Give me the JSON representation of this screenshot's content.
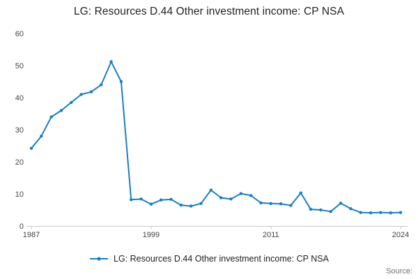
{
  "title": "LG: Resources D.44 Other investment income: CP NSA",
  "legend": {
    "label": "LG: Resources D.44 Other investment income: CP NSA"
  },
  "source_label": "Source:",
  "colors": {
    "line": "#1b7ec2",
    "title_text": "#222222",
    "tick_text": "#444444",
    "axis_line": "#c9c9c9",
    "source_text": "#707070",
    "background": "#ffffff"
  },
  "chart_data": {
    "type": "line",
    "title": "LG: Resources D.44 Other investment income: CP NSA",
    "xlabel": "",
    "ylabel": "",
    "xlim": [
      1987,
      2024
    ],
    "ylim": [
      0,
      60
    ],
    "xticks": [
      1987,
      1999,
      2011,
      2024
    ],
    "yticks": [
      0,
      10,
      20,
      30,
      40,
      50,
      60
    ],
    "grid": false,
    "legend_position": "bottom",
    "marker": "circle",
    "x": [
      1987,
      1988,
      1989,
      1990,
      1991,
      1992,
      1993,
      1994,
      1995,
      1996,
      1997,
      1998,
      1999,
      2000,
      2001,
      2002,
      2003,
      2004,
      2005,
      2006,
      2007,
      2008,
      2009,
      2010,
      2011,
      2012,
      2013,
      2014,
      2015,
      2016,
      2017,
      2018,
      2019,
      2020,
      2021,
      2022,
      2023,
      2024
    ],
    "series": [
      {
        "name": "LG: Resources D.44 Other investment income: CP NSA",
        "values": [
          24.2,
          28.0,
          34.0,
          36.0,
          38.5,
          41.0,
          41.8,
          44.0,
          51.2,
          45.0,
          8.2,
          8.4,
          6.8,
          8.1,
          8.3,
          6.5,
          6.2,
          7.0,
          11.2,
          8.8,
          8.4,
          10.1,
          9.5,
          7.2,
          7.0,
          6.9,
          6.4,
          10.3,
          5.2,
          5.0,
          4.5,
          7.1,
          5.4,
          4.2,
          4.1,
          4.2,
          4.1,
          4.2
        ]
      }
    ]
  }
}
